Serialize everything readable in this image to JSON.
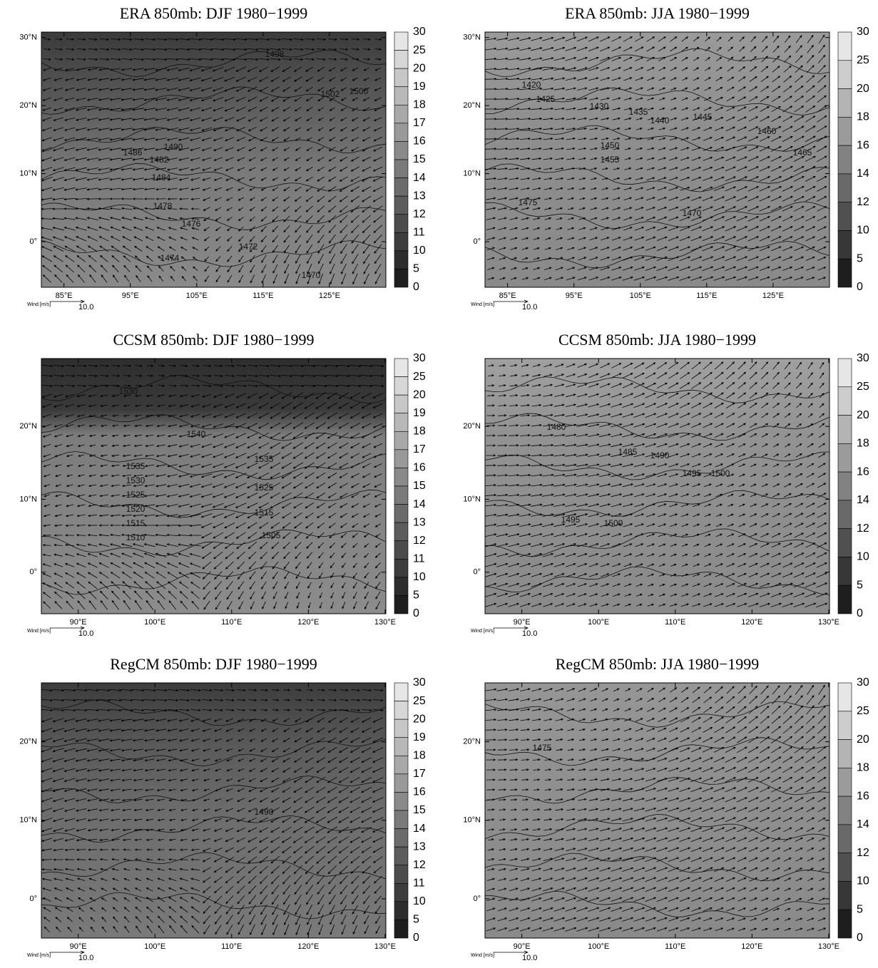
{
  "panels": [
    {
      "title": "ERA 850mb: DJF 1980−1999",
      "xlim": [
        81.6,
        133.5
      ],
      "xticks": [
        {
          "value": 85,
          "label": "85°E"
        },
        {
          "value": 95,
          "label": "95°E"
        },
        {
          "value": 105,
          "label": "105°E"
        },
        {
          "value": 115,
          "label": "115°E"
        },
        {
          "value": 125,
          "label": "125°E"
        }
      ],
      "ylim": [
        -6.7,
        30.8
      ],
      "yticks": [
        {
          "value": 30,
          "label": "30°N"
        },
        {
          "value": 20,
          "label": "20°N"
        },
        {
          "value": 10,
          "label": "10°N"
        },
        {
          "value": 0,
          "label": "0°"
        }
      ],
      "colorbar_levels": [
        30,
        25,
        20,
        19,
        18,
        17,
        16,
        15,
        14,
        13,
        12,
        11,
        10,
        5,
        0
      ],
      "contour_labels": [
        1498,
        1502,
        1500,
        1490,
        1486,
        1482,
        1484,
        1478,
        1476,
        1474,
        1472,
        1470
      ],
      "wind_label": "Wind [m/s]",
      "wind_reference": {
        "value": 10,
        "label": "10.0"
      }
    },
    {
      "title": "ERA 850mb: JJA 1980−1999",
      "xlim": [
        81.6,
        133.5
      ],
      "xticks": [
        {
          "value": 85,
          "label": "85°E"
        },
        {
          "value": 95,
          "label": "95°E"
        },
        {
          "value": 105,
          "label": "105°E"
        },
        {
          "value": 115,
          "label": "115°E"
        },
        {
          "value": 125,
          "label": "125°E"
        }
      ],
      "ylim": [
        -6.7,
        30.8
      ],
      "yticks": [
        {
          "value": 30,
          "label": "30°N"
        },
        {
          "value": 20,
          "label": "20°N"
        },
        {
          "value": 10,
          "label": "10°N"
        },
        {
          "value": 0,
          "label": "0°"
        }
      ],
      "colorbar_levels": [
        30,
        25,
        20,
        18,
        16,
        14,
        12,
        10,
        5,
        0
      ],
      "contour_labels": [
        1420,
        1425,
        1430,
        1435,
        1440,
        1445,
        1450,
        1455,
        1460,
        1465,
        1470,
        1475
      ],
      "wind_label": "Wind [m/s]",
      "wind_reference": {
        "value": 10,
        "label": "10.0"
      }
    },
    {
      "title": "CCSM 850mb: DJF 1980−1999",
      "xlim": [
        85.2,
        130.1
      ],
      "xticks": [
        {
          "value": 90,
          "label": "90°E"
        },
        {
          "value": 100,
          "label": "100°E"
        },
        {
          "value": 110,
          "label": "110°E"
        },
        {
          "value": 120,
          "label": "120°E"
        },
        {
          "value": 130,
          "label": "130°E"
        }
      ],
      "ylim": [
        -5.7,
        29.3
      ],
      "yticks": [
        {
          "value": 20,
          "label": "20°N"
        },
        {
          "value": 10,
          "label": "10°N"
        },
        {
          "value": 0,
          "label": "0°"
        }
      ],
      "colorbar_levels": [
        30,
        25,
        20,
        19,
        18,
        17,
        16,
        15,
        14,
        13,
        12,
        11,
        10,
        5,
        0
      ],
      "contour_labels": [
        1530,
        1540,
        1535,
        1530,
        1525,
        1520,
        1515,
        1510,
        1535,
        1525,
        1515,
        1505
      ],
      "wind_label": "Wind [m/s]",
      "wind_reference": {
        "value": 10,
        "label": "10.0"
      }
    },
    {
      "title": "CCSM 850mb: JJA 1980−1999",
      "xlim": [
        85.2,
        130.1
      ],
      "xticks": [
        {
          "value": 90,
          "label": "90°E"
        },
        {
          "value": 100,
          "label": "100°E"
        },
        {
          "value": 110,
          "label": "110°E"
        },
        {
          "value": 120,
          "label": "120°E"
        },
        {
          "value": 130,
          "label": "130°E"
        }
      ],
      "ylim": [
        -5.7,
        29.3
      ],
      "yticks": [
        {
          "value": 20,
          "label": "20°N"
        },
        {
          "value": 10,
          "label": "10°N"
        },
        {
          "value": 0,
          "label": "0°"
        }
      ],
      "colorbar_levels": [
        30,
        25,
        20,
        18,
        16,
        14,
        12,
        10,
        5,
        0
      ],
      "contour_labels": [
        1480,
        1485,
        1490,
        1495,
        1500,
        1495,
        1500
      ],
      "wind_label": "Wind [m/s]",
      "wind_reference": {
        "value": 10,
        "label": "10.0"
      }
    },
    {
      "title": "RegCM 850mb: DJF 1980−1999",
      "xlim": [
        85.2,
        130.1
      ],
      "xticks": [
        {
          "value": 90,
          "label": "90°E"
        },
        {
          "value": 100,
          "label": "100°E"
        },
        {
          "value": 110,
          "label": "110°E"
        },
        {
          "value": 120,
          "label": "120°E"
        },
        {
          "value": 130,
          "label": "130°E"
        }
      ],
      "ylim": [
        -5.0,
        27.5
      ],
      "yticks": [
        {
          "value": 20,
          "label": "20°N"
        },
        {
          "value": 10,
          "label": "10°N"
        },
        {
          "value": 0,
          "label": "0°"
        }
      ],
      "colorbar_levels": [
        30,
        25,
        20,
        19,
        18,
        17,
        16,
        15,
        14,
        13,
        12,
        11,
        10,
        5,
        0
      ],
      "contour_labels": [
        1490
      ],
      "wind_label": "Wind [m/s]",
      "wind_reference": {
        "value": 10,
        "label": "10.0"
      }
    },
    {
      "title": "RegCM 850mb: JJA 1980−1999",
      "xlim": [
        85.2,
        130.1
      ],
      "xticks": [
        {
          "value": 90,
          "label": "90°E"
        },
        {
          "value": 100,
          "label": "100°E"
        },
        {
          "value": 110,
          "label": "110°E"
        },
        {
          "value": 120,
          "label": "120°E"
        },
        {
          "value": 130,
          "label": "130°E"
        }
      ],
      "ylim": [
        -5.0,
        27.5
      ],
      "yticks": [
        {
          "value": 20,
          "label": "20°N"
        },
        {
          "value": 10,
          "label": "10°N"
        },
        {
          "value": 0,
          "label": "0°"
        }
      ],
      "colorbar_levels": [
        30,
        25,
        20,
        18,
        16,
        14,
        12,
        10,
        5,
        0
      ],
      "contour_labels": [
        1475
      ],
      "wind_label": "Wind [m/s]",
      "wind_reference": {
        "value": 10,
        "label": "10.0"
      }
    }
  ]
}
